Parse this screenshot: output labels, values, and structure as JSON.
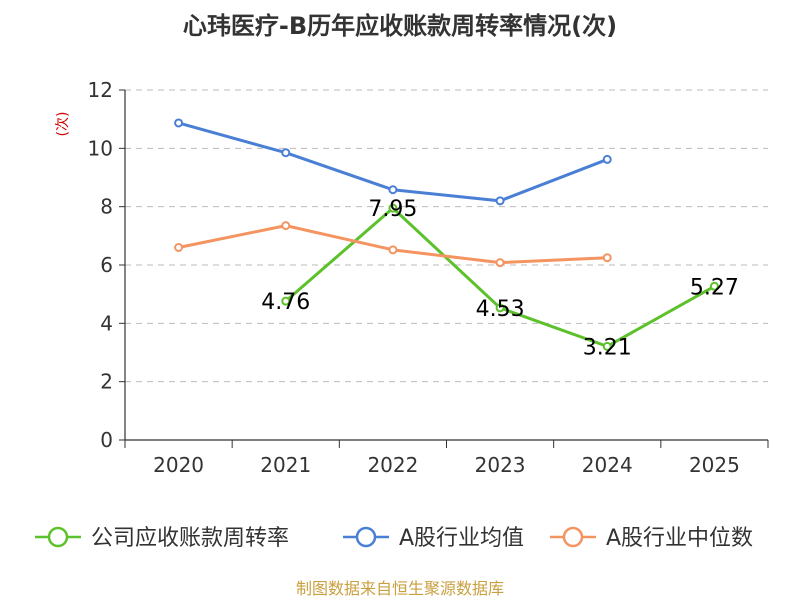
{
  "chart_data": {
    "type": "line",
    "title": "心玮医疗-B历年应收账款周转率情况(次)",
    "ylabel": "(次)",
    "xlabel": "",
    "categories": [
      "2020",
      "2021",
      "2022",
      "2023",
      "2024",
      "2025"
    ],
    "ylim": [
      0,
      12
    ],
    "yticks": [
      0,
      2,
      4,
      6,
      8,
      10,
      12
    ],
    "grid": true,
    "legend_position": "bottom",
    "series": [
      {
        "name": "公司应收账款周转率",
        "color": "#5cc12a",
        "values": [
          null,
          4.76,
          7.95,
          4.53,
          3.21,
          5.27
        ],
        "labels": [
          "",
          "4.76",
          "7.95",
          "4.53",
          "3.21",
          "5.27"
        ]
      },
      {
        "name": "A股行业均值",
        "color": "#4a7fd6",
        "values": [
          10.87,
          9.85,
          8.58,
          8.2,
          9.62,
          null
        ]
      },
      {
        "name": "A股行业中位数",
        "color": "#f39461",
        "values": [
          6.6,
          7.35,
          6.52,
          6.08,
          6.25,
          null
        ]
      }
    ],
    "source": "制图数据来自恒生聚源数据库"
  }
}
